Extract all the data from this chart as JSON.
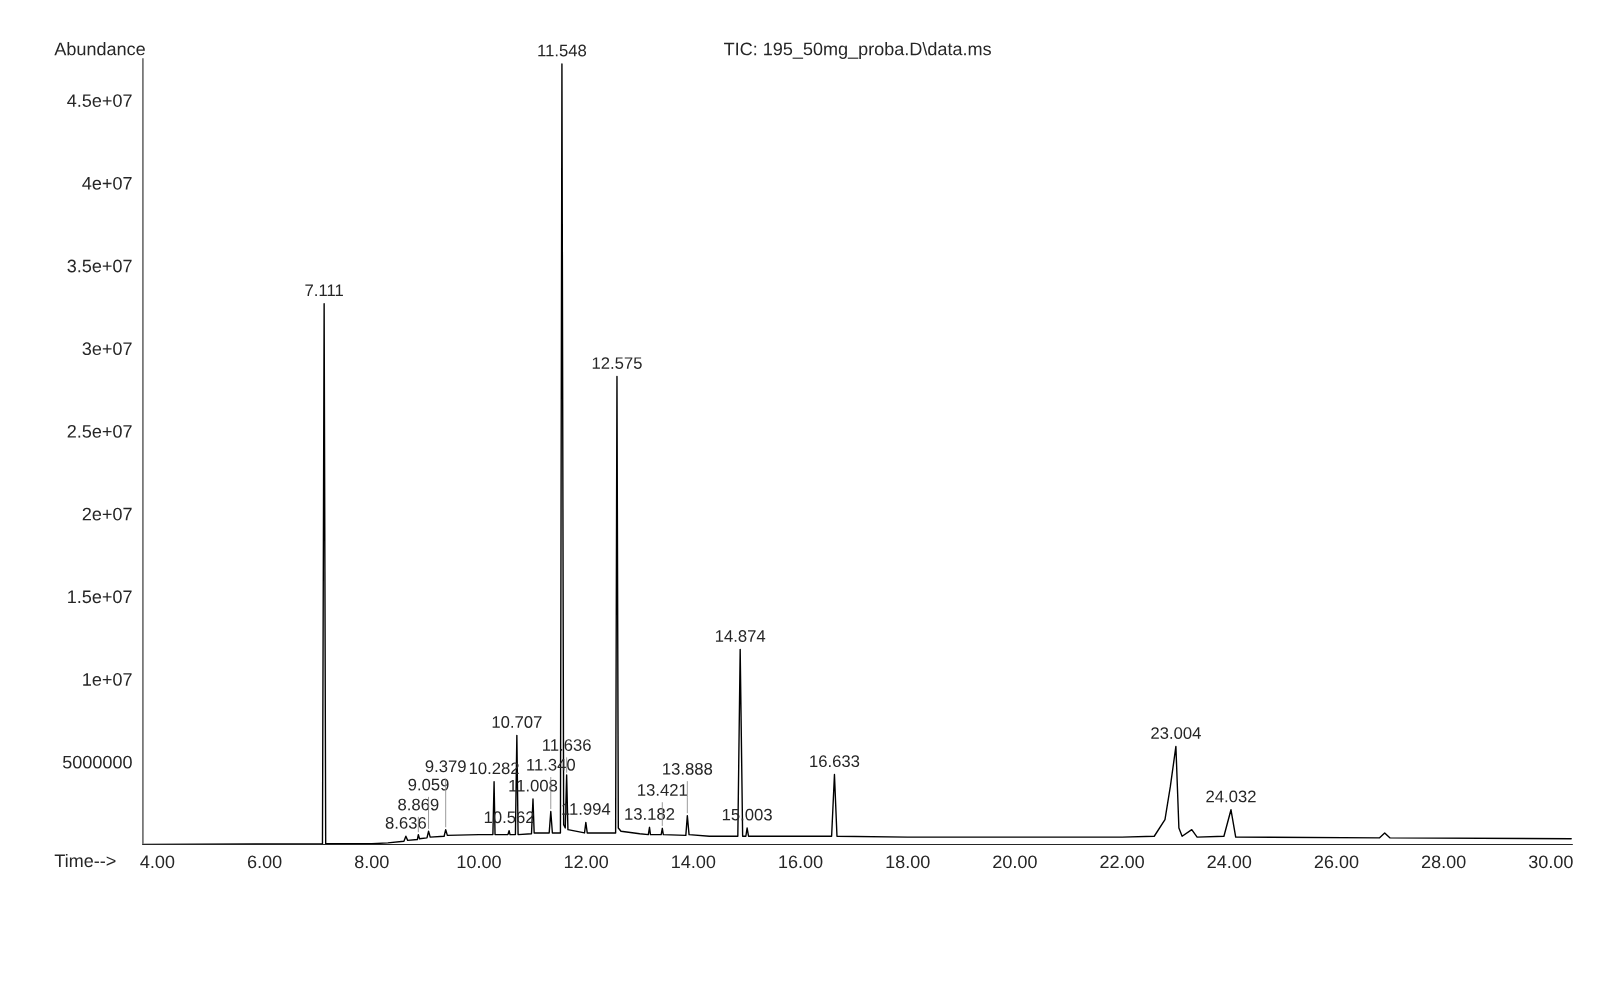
{
  "chart_data": {
    "type": "line",
    "title": "TIC: 195_50mg_proba.D\\data.ms",
    "xlabel": "Time-->",
    "ylabel": "Abundance",
    "color": "#000000",
    "x": [
      3.75,
      7.08,
      7.111,
      7.14,
      8.0,
      8.3,
      8.6,
      8.636,
      8.67,
      8.85,
      8.869,
      8.89,
      9.03,
      9.059,
      9.09,
      9.35,
      9.379,
      9.41,
      10.0,
      10.26,
      10.282,
      10.3,
      10.54,
      10.562,
      10.58,
      10.68,
      10.707,
      10.73,
      10.98,
      11.008,
      11.03,
      11.31,
      11.34,
      11.37,
      11.52,
      11.548,
      11.58,
      11.61,
      11.636,
      11.66,
      11.97,
      11.994,
      12.02,
      12.55,
      12.575,
      12.6,
      12.65,
      13.0,
      13.16,
      13.182,
      13.2,
      13.4,
      13.421,
      13.44,
      13.86,
      13.888,
      13.92,
      14.3,
      14.83,
      14.874,
      14.92,
      14.98,
      15.003,
      15.03,
      16.58,
      16.633,
      16.68,
      18.0,
      20.0,
      22.0,
      22.6,
      22.8,
      22.9,
      23.004,
      23.06,
      23.12,
      23.3,
      23.4,
      23.9,
      24.032,
      24.12,
      26.8,
      26.9,
      27.0,
      30.38
    ],
    "values": [
      0,
      50000,
      32700000,
      50000,
      50000,
      100000,
      200000,
      500000,
      250000,
      300000,
      600000,
      350000,
      400000,
      800000,
      450000,
      500000,
      900000,
      550000,
      600000,
      600000,
      3800000,
      600000,
      600000,
      840000,
      600000,
      600000,
      6600000,
      600000,
      650000,
      2750000,
      700000,
      700000,
      2000000,
      700000,
      700000,
      47200000,
      1200000,
      1000000,
      4200000,
      900000,
      700000,
      1340000,
      700000,
      700000,
      28300000,
      1000000,
      800000,
      650000,
      600000,
      1040000,
      600000,
      600000,
      980000,
      600000,
      550000,
      1750000,
      600000,
      500000,
      500000,
      11800000,
      500000,
      500000,
      1000000,
      500000,
      500000,
      4230000,
      500000,
      450000,
      450000,
      450000,
      500000,
      1500000,
      3500000,
      5930000,
      1000000,
      500000,
      900000,
      450000,
      500000,
      2100000,
      450000,
      400000,
      700000,
      400000,
      350000
    ],
    "xlim": [
      3.73,
      30.4
    ],
    "ylim": [
      0,
      47500000
    ],
    "xticks": [
      {
        "value": 4,
        "label": "4.00"
      },
      {
        "value": 6,
        "label": "6.00"
      },
      {
        "value": 8,
        "label": "8.00"
      },
      {
        "value": 10,
        "label": "10.00"
      },
      {
        "value": 12,
        "label": "12.00"
      },
      {
        "value": 14,
        "label": "14.00"
      },
      {
        "value": 16,
        "label": "16.00"
      },
      {
        "value": 18,
        "label": "18.00"
      },
      {
        "value": 20,
        "label": "20.00"
      },
      {
        "value": 22,
        "label": "22.00"
      },
      {
        "value": 24,
        "label": "24.00"
      },
      {
        "value": 26,
        "label": "26.00"
      },
      {
        "value": 28,
        "label": "28.00"
      },
      {
        "value": 30,
        "label": "30.00"
      }
    ],
    "yticks": [
      5000000,
      {
        "value": 10000000,
        "label": "1e+07"
      },
      {
        "value": 15000000,
        "label": "1.5e+07"
      },
      {
        "value": 20000000,
        "label": "2e+07"
      },
      {
        "value": 25000000,
        "label": "2.5e+07"
      },
      {
        "value": 30000000,
        "label": "3e+07"
      },
      {
        "value": 35000000,
        "label": "3.5e+07"
      },
      {
        "value": 40000000,
        "label": "4e+07"
      },
      {
        "value": 45000000,
        "label": "4.5e+07"
      }
    ],
    "annotations": [
      {
        "text": "7.111",
        "x": 7.111,
        "y": 32700000
      },
      {
        "text": "8.636",
        "x": 8.636,
        "y": 500000
      },
      {
        "text": "8.869",
        "x": 8.869,
        "y": 600000
      },
      {
        "text": "9.059",
        "x": 9.059,
        "y": 800000
      },
      {
        "text": "9.379",
        "x": 9.379,
        "y": 900000
      },
      {
        "text": "10.282",
        "x": 10.282,
        "y": 3800000
      },
      {
        "text": "10.562",
        "x": 10.562,
        "y": 840000
      },
      {
        "text": "10.707",
        "x": 10.707,
        "y": 6600000
      },
      {
        "text": "11.008",
        "x": 11.008,
        "y": 2750000
      },
      {
        "text": "11.340",
        "x": 11.34,
        "y": 2000000
      },
      {
        "text": "11.548",
        "x": 11.548,
        "y": 47200000
      },
      {
        "text": "11.636",
        "x": 11.636,
        "y": 4200000
      },
      {
        "text": "11.994",
        "x": 11.994,
        "y": 1340000
      },
      {
        "text": "12.575",
        "x": 12.575,
        "y": 28300000
      },
      {
        "text": "13.182",
        "x": 13.182,
        "y": 1040000
      },
      {
        "text": "13.421",
        "x": 13.421,
        "y": 980000
      },
      {
        "text": "13.888",
        "x": 13.888,
        "y": 1750000
      },
      {
        "text": "14.874",
        "x": 14.874,
        "y": 11800000
      },
      {
        "text": "15.003",
        "x": 15.003,
        "y": 1000000
      },
      {
        "text": "16.633",
        "x": 16.633,
        "y": 4230000
      },
      {
        "text": "23.004",
        "x": 23.004,
        "y": 5930000
      },
      {
        "text": "24.032",
        "x": 24.032,
        "y": 2100000
      }
    ]
  }
}
